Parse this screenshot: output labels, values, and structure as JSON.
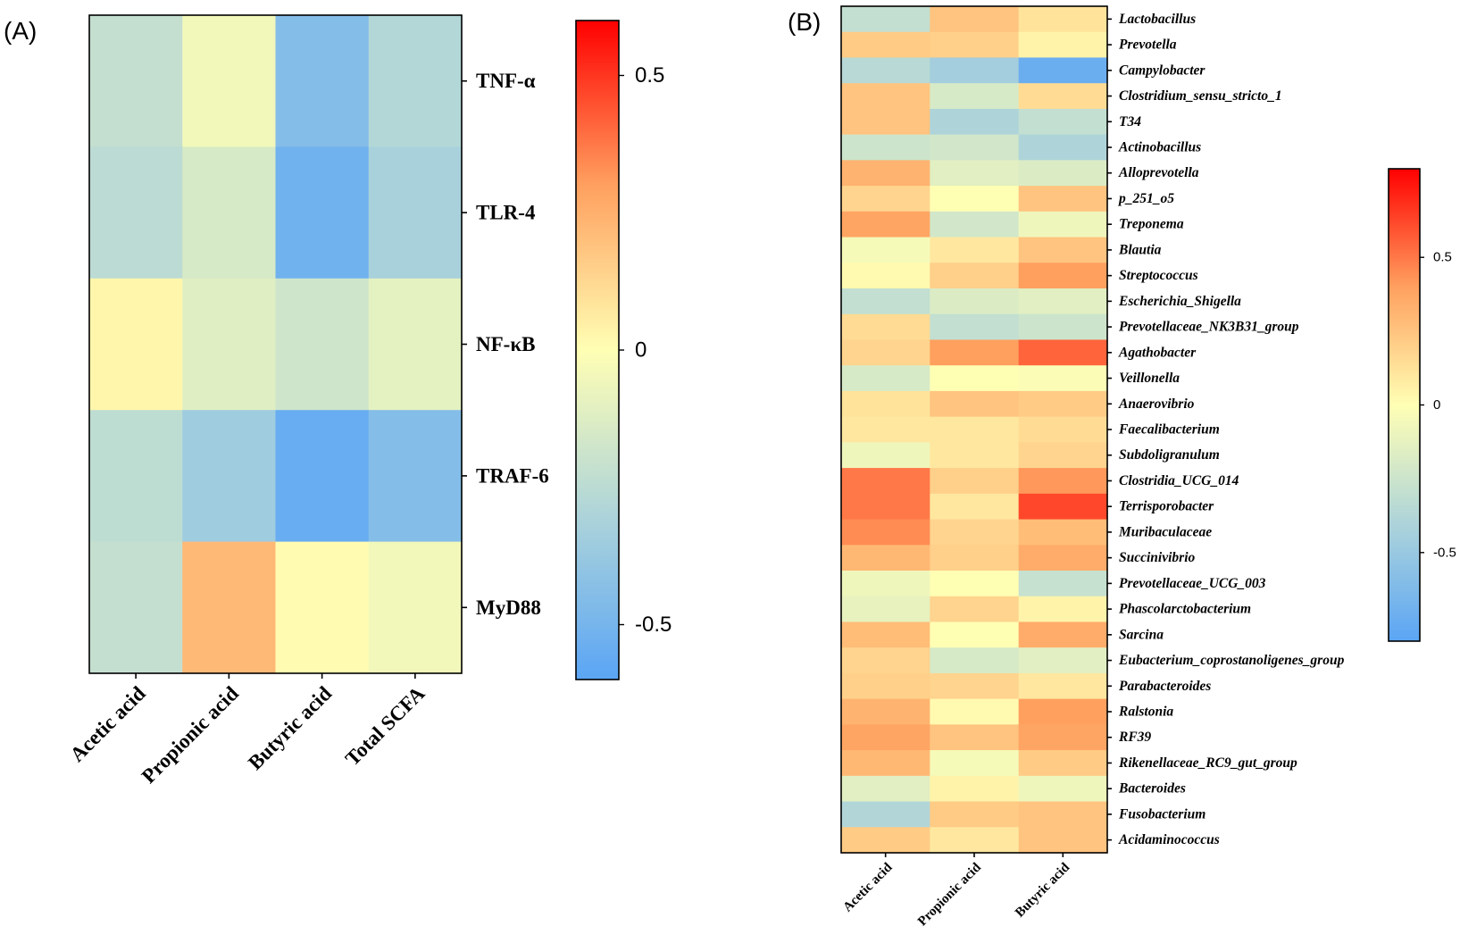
{
  "colors": {
    "neg": "#5aa5f5",
    "mid": "#ffffb4",
    "pos": "#ff0000",
    "frame": "#000000"
  },
  "chart_data": [
    {
      "type": "heatmap",
      "panel": "(A)",
      "x_categories": [
        "Acetic acid",
        "Propionic acid",
        "Butyric acid",
        "Total SCFA"
      ],
      "y_categories": [
        "TNF-α",
        "TLR-4",
        "NF-κB",
        "TRAF-6",
        "MyD88"
      ],
      "values": [
        [
          -0.22,
          -0.05,
          -0.45,
          -0.28
        ],
        [
          -0.25,
          -0.15,
          -0.52,
          -0.32
        ],
        [
          0.03,
          -0.12,
          -0.18,
          -0.1
        ],
        [
          -0.24,
          -0.35,
          -0.55,
          -0.45
        ],
        [
          -0.22,
          0.22,
          0.01,
          -0.05
        ]
      ],
      "colorbar": {
        "min": -0.6,
        "max": 0.6,
        "ticks": [
          0.5,
          0,
          -0.5
        ],
        "tick_labels": [
          "0.5",
          "0",
          "-0.5"
        ]
      }
    },
    {
      "type": "heatmap",
      "panel": "(B)",
      "x_categories": [
        "Acetic acid",
        "Propionic acid",
        "Butyric acid"
      ],
      "y_categories": [
        "Lactobacillus",
        "Prevotella",
        "Campylobacter",
        "Clostridium_sensu_stricto_1",
        "T34",
        "Actinobacillus",
        "Alloprevotella",
        "p_251_o5",
        "Treponema",
        "Blautia",
        "Streptococcus",
        "Escherichia_Shigella",
        "Prevotellaceae_NK3B31_group",
        "Agathobacter",
        "Veillonella",
        "Anaerovibrio",
        "Faecalibacterium",
        "Subdoligranulum",
        "Clostridia_UCG_014",
        "Terrisporobacter",
        "Muribaculaceae",
        "Succinivibrio",
        "Prevotellaceae_UCG_003",
        "Phascolarctobacterium",
        "Sarcina",
        "Eubacterium_coprostanoligenes_group",
        "Parabacteroides",
        "Ralstonia",
        "RF39",
        "Rikenellaceae_RC9_gut_group",
        "Bacteroides",
        "Fusobacterium",
        "Acidaminococcus"
      ],
      "values": [
        [
          -0.3,
          0.25,
          0.12
        ],
        [
          0.22,
          0.2,
          0.05
        ],
        [
          -0.35,
          -0.45,
          -0.72
        ],
        [
          0.25,
          -0.2,
          0.15
        ],
        [
          0.25,
          -0.4,
          -0.3
        ],
        [
          -0.25,
          -0.22,
          -0.4
        ],
        [
          0.32,
          -0.15,
          -0.18
        ],
        [
          0.18,
          0.0,
          0.25
        ],
        [
          0.38,
          -0.22,
          -0.08
        ],
        [
          -0.05,
          0.1,
          0.25
        ],
        [
          0.02,
          0.2,
          0.4
        ],
        [
          -0.3,
          -0.18,
          -0.15
        ],
        [
          0.15,
          -0.3,
          -0.25
        ],
        [
          0.18,
          0.4,
          0.55
        ],
        [
          -0.2,
          0.0,
          -0.02
        ],
        [
          0.12,
          0.25,
          0.22
        ],
        [
          0.1,
          0.1,
          0.15
        ],
        [
          -0.08,
          0.1,
          0.18
        ],
        [
          0.5,
          0.2,
          0.42
        ],
        [
          0.5,
          0.1,
          0.62
        ],
        [
          0.45,
          0.18,
          0.28
        ],
        [
          0.3,
          0.2,
          0.35
        ],
        [
          -0.08,
          0.0,
          -0.28
        ],
        [
          -0.12,
          0.18,
          0.05
        ],
        [
          0.28,
          0.0,
          0.35
        ],
        [
          0.18,
          -0.2,
          -0.15
        ],
        [
          0.2,
          0.18,
          0.1
        ],
        [
          0.32,
          0.02,
          0.4
        ],
        [
          0.38,
          0.25,
          0.38
        ],
        [
          0.3,
          -0.05,
          0.22
        ],
        [
          -0.15,
          0.05,
          -0.08
        ],
        [
          -0.38,
          0.22,
          0.25
        ],
        [
          0.22,
          0.1,
          0.25
        ]
      ],
      "colorbar": {
        "min": -0.8,
        "max": 0.8,
        "ticks": [
          0.5,
          0,
          -0.5
        ],
        "tick_labels": [
          "0.5",
          "0",
          "-0.5"
        ]
      }
    }
  ]
}
